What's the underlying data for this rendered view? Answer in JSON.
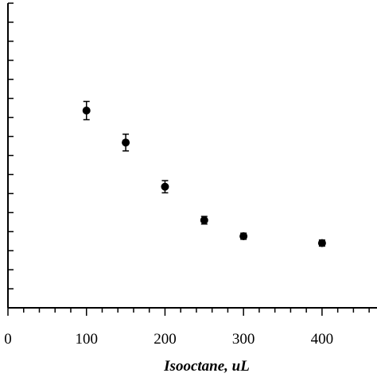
{
  "chart_data": {
    "type": "scatter",
    "title": "",
    "xlabel": "Isooctane, uL",
    "ylabel": "",
    "xlim": [
      0,
      470
    ],
    "ylim": [
      0,
      40
    ],
    "x_ticks": [
      0,
      100,
      200,
      300,
      400
    ],
    "x_minor_step": 20,
    "y_tick_step": 2.5,
    "y_tick_labels_shown": false,
    "grid": false,
    "legend": "none",
    "marker_color": "#000000",
    "series": [
      {
        "x": [
          100,
          150,
          200,
          250,
          300,
          400
        ],
        "y": [
          25.9,
          21.7,
          15.9,
          11.5,
          9.4,
          8.5
        ],
        "error": [
          1.2,
          1.1,
          0.8,
          0.5,
          0.4,
          0.4
        ]
      }
    ]
  }
}
